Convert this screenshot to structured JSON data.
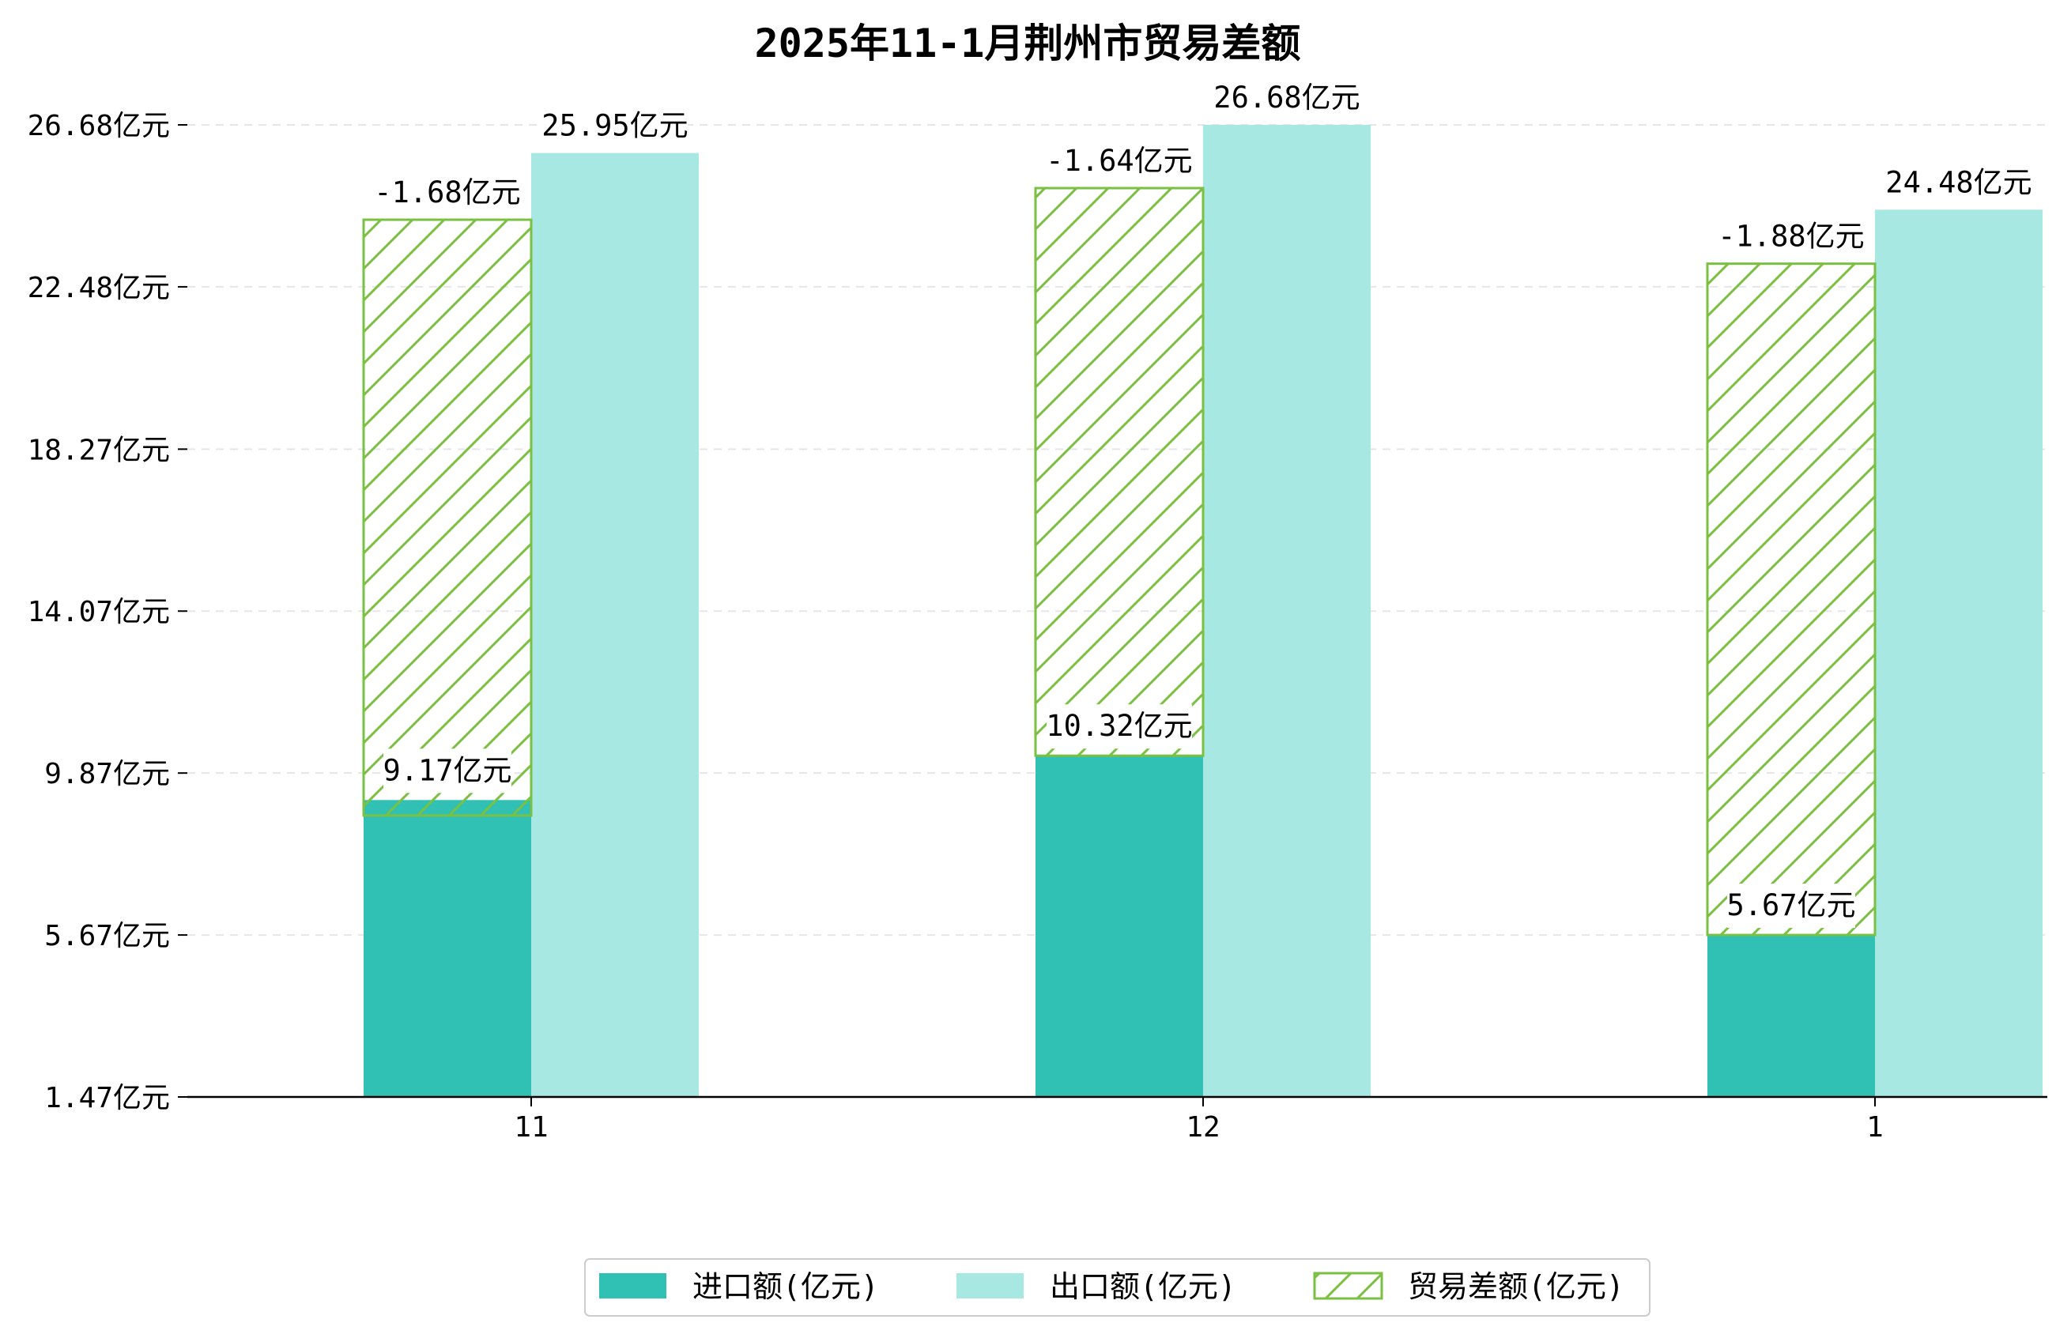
{
  "chart_data": {
    "type": "bar",
    "title": "2025年11-1月荆州市贸易差额",
    "categories": [
      "11",
      "12",
      "1"
    ],
    "series": [
      {
        "name": "进口额(亿元)",
        "values": [
          9.17,
          10.32,
          5.67
        ],
        "labels": [
          "9.17亿元",
          "10.32亿元",
          "5.67亿元"
        ]
      },
      {
        "name": "出口额(亿元)",
        "values": [
          25.95,
          26.68,
          24.48
        ],
        "labels": [
          "25.95亿元",
          "26.68亿元",
          "24.48亿元"
        ]
      },
      {
        "name": "贸易差额(亿元)",
        "values": [
          -1.68,
          -1.64,
          -1.88
        ],
        "labels": [
          "-1.68亿元",
          "-1.64亿元",
          "-1.88亿元"
        ],
        "style": "hatched",
        "spans": [
          [
            8.77,
            24.22
          ],
          [
            10.32,
            25.04
          ],
          [
            5.67,
            23.08
          ]
        ]
      }
    ],
    "yticks": [
      "1.47亿元",
      "5.67亿元",
      "9.87亿元",
      "14.07亿元",
      "18.27亿元",
      "22.48亿元",
      "26.68亿元"
    ],
    "ytick_values": [
      1.47,
      5.67,
      9.87,
      14.07,
      18.27,
      22.48,
      26.68
    ],
    "ylim": [
      1.47,
      26.68
    ],
    "grid": true,
    "legend_position": "bottom-center",
    "colors": {
      "import": "#30c0b4",
      "export": "#a8e8e2",
      "balance": "#7ac143",
      "grid": "#e6e6e6"
    }
  }
}
